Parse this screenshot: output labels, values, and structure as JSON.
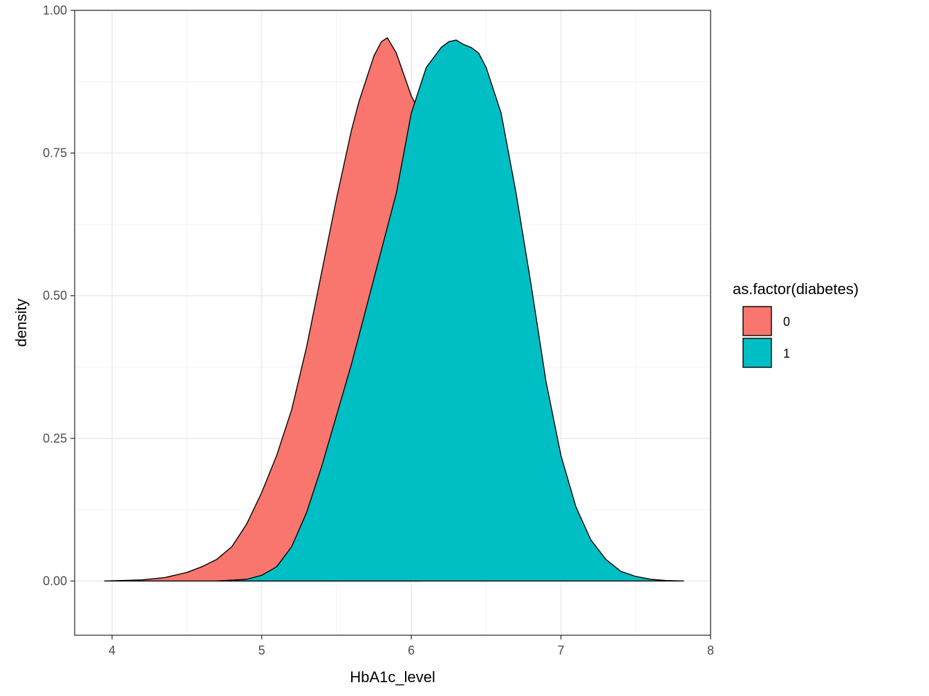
{
  "chart_data": {
    "type": "area",
    "xlabel": "HbA1c_level",
    "ylabel": "density",
    "xlim": [
      3.75,
      8.0
    ],
    "ylim": [
      -0.095,
      1.0
    ],
    "x_ticks": [
      4,
      5,
      6,
      7,
      8
    ],
    "y_ticks": [
      0.0,
      0.25,
      0.5,
      0.75,
      1.0
    ],
    "x_tick_labels": [
      "4",
      "5",
      "6",
      "7",
      "8"
    ],
    "y_tick_labels": [
      "0.00",
      "0.25",
      "0.50",
      "0.75",
      "1.00"
    ],
    "grid": true,
    "legend": {
      "title": "as.factor(diabetes)",
      "position": "right"
    },
    "series": [
      {
        "name": "0",
        "color": "#F8766D",
        "x": [
          3.95,
          4.2,
          4.35,
          4.5,
          4.6,
          4.7,
          4.8,
          4.9,
          5.0,
          5.1,
          5.2,
          5.3,
          5.4,
          5.5,
          5.6,
          5.65,
          5.7,
          5.75,
          5.8,
          5.84,
          5.9,
          6.0,
          6.06
        ],
        "y": [
          0.0,
          0.002,
          0.006,
          0.015,
          0.025,
          0.038,
          0.06,
          0.1,
          0.155,
          0.22,
          0.3,
          0.41,
          0.54,
          0.67,
          0.79,
          0.84,
          0.88,
          0.92,
          0.945,
          0.952,
          0.925,
          0.85,
          0.82
        ]
      },
      {
        "name": "1",
        "color": "#00BFC4",
        "x": [
          4.7,
          4.9,
          5.0,
          5.1,
          5.2,
          5.3,
          5.4,
          5.5,
          5.6,
          5.7,
          5.8,
          5.9,
          6.0,
          6.05,
          6.1,
          6.2,
          6.25,
          6.3,
          6.35,
          6.4,
          6.45,
          6.5,
          6.6,
          6.7,
          6.8,
          6.9,
          7.0,
          7.1,
          7.2,
          7.3,
          7.4,
          7.5,
          7.6,
          7.7,
          7.82
        ],
        "y": [
          0.0,
          0.003,
          0.01,
          0.025,
          0.06,
          0.12,
          0.2,
          0.29,
          0.38,
          0.48,
          0.58,
          0.68,
          0.82,
          0.86,
          0.9,
          0.935,
          0.945,
          0.948,
          0.94,
          0.935,
          0.925,
          0.9,
          0.82,
          0.68,
          0.52,
          0.35,
          0.22,
          0.13,
          0.072,
          0.038,
          0.017,
          0.008,
          0.003,
          0.001,
          0.0
        ]
      }
    ]
  }
}
